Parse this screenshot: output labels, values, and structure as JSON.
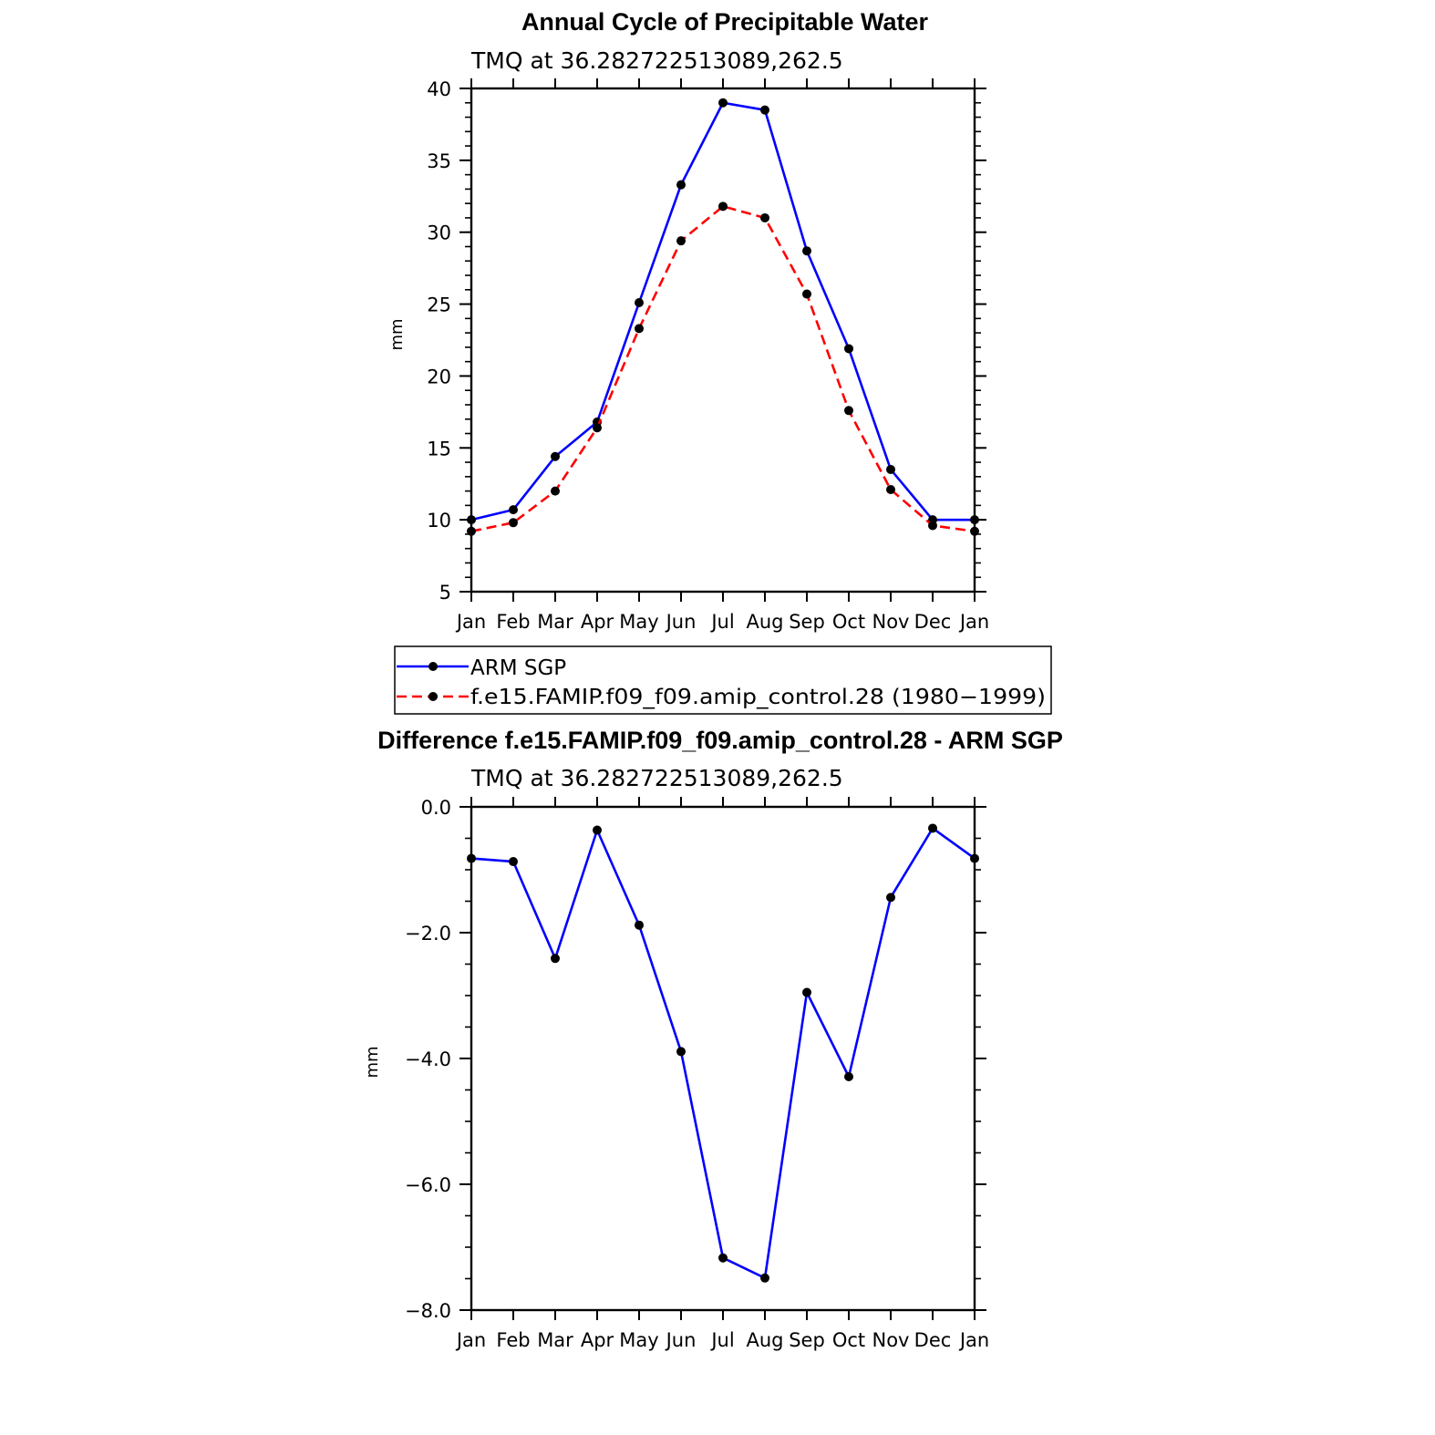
{
  "chart_data": [
    {
      "type": "line",
      "title": "Annual Cycle of Precipitable Water",
      "subtitle": "TMQ at 36.282722513089,262.5",
      "xlabel": "",
      "ylabel": "mm",
      "categories": [
        "Jan",
        "Feb",
        "Mar",
        "Apr",
        "May",
        "Jun",
        "Jul",
        "Aug",
        "Sep",
        "Oct",
        "Nov",
        "Dec",
        "Jan"
      ],
      "ylim": [
        5,
        40
      ],
      "yticks": [
        "5",
        "10",
        "15",
        "20",
        "25",
        "30",
        "35",
        "40"
      ],
      "series": [
        {
          "name": "ARM SGP",
          "color": "#0000ff",
          "style": "solid",
          "values": [
            10.0,
            10.7,
            14.4,
            16.8,
            25.1,
            33.3,
            39.0,
            38.5,
            28.7,
            21.9,
            13.5,
            10.0,
            10.0
          ]
        },
        {
          "name": "f.e15.FAMIP.f09_f09.amip_control.28 (1980−1999)",
          "color": "#ff0000",
          "style": "dashed",
          "values": [
            9.2,
            9.8,
            12.0,
            16.4,
            23.3,
            29.4,
            31.8,
            31.0,
            25.7,
            17.6,
            12.1,
            9.6,
            9.2
          ]
        }
      ],
      "legend": "bottom"
    },
    {
      "type": "line",
      "title": "Difference f.e15.FAMIP.f09_f09.amip_control.28 - ARM SGP",
      "subtitle": "TMQ at 36.282722513089,262.5",
      "xlabel": "",
      "ylabel": "mm",
      "categories": [
        "Jan",
        "Feb",
        "Mar",
        "Apr",
        "May",
        "Jun",
        "Jul",
        "Aug",
        "Sep",
        "Oct",
        "Nov",
        "Dec",
        "Jan"
      ],
      "ylim": [
        -8,
        0
      ],
      "yticks": [
        "−8.0",
        "−6.0",
        "−4.0",
        "−2.0",
        "0.0"
      ],
      "series": [
        {
          "name": "Difference",
          "color": "#0000ff",
          "style": "solid",
          "values": [
            -0.82,
            -0.87,
            -2.41,
            -0.37,
            -1.88,
            -3.89,
            -7.17,
            -7.49,
            -2.95,
            -4.29,
            -1.44,
            -0.34,
            -0.82
          ]
        }
      ]
    }
  ]
}
